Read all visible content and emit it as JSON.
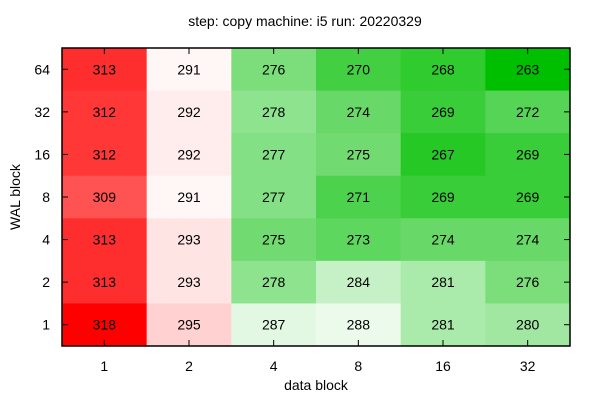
{
  "chart_data": {
    "type": "heatmap",
    "title": "step: copy  machine: i5  run: 20220329",
    "xlabel": "data block",
    "ylabel": "WAL block",
    "x_categories": [
      "1",
      "2",
      "4",
      "8",
      "16",
      "32"
    ],
    "y_categories": [
      "64",
      "32",
      "16",
      "8",
      "4",
      "2",
      "1"
    ],
    "values": [
      [
        313,
        291,
        276,
        270,
        268,
        263
      ],
      [
        312,
        292,
        278,
        274,
        269,
        272
      ],
      [
        312,
        292,
        277,
        275,
        267,
        269
      ],
      [
        309,
        291,
        277,
        271,
        269,
        269
      ],
      [
        313,
        293,
        275,
        273,
        274,
        274
      ],
      [
        313,
        293,
        278,
        284,
        281,
        276
      ],
      [
        318,
        295,
        287,
        288,
        281,
        280
      ]
    ],
    "color_scale": {
      "low_color": "#00bf00",
      "mid_color": "#ffffff",
      "high_color": "#ff0000",
      "low": 263,
      "mid": 290,
      "high": 318
    },
    "grid": false,
    "legend": "none"
  }
}
